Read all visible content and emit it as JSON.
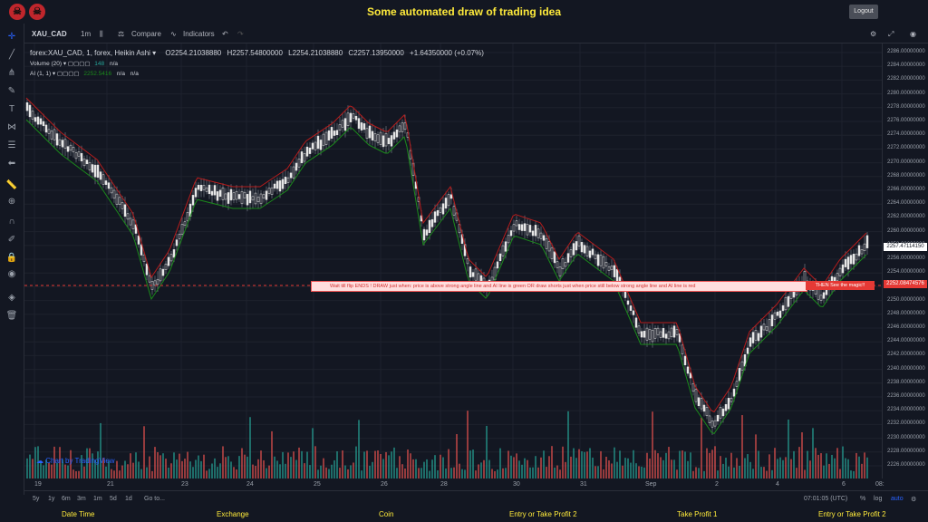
{
  "header": {
    "title": "Some automated draw of trading idea",
    "logout_label": "Logout"
  },
  "toolbar": {
    "symbol": "XAU_CAD",
    "interval": "1m",
    "compare_label": "Compare",
    "indicators_label": "Indicators"
  },
  "legend": {
    "series": "forex:XAU_CAD, 1, forex, Heikin Ashi",
    "open": "O2254.21038880",
    "high": "H2257.54800000",
    "low": "L2254.21038880",
    "close": "C2257.13950000",
    "change": "+1.64350000 (+0.07%)",
    "volume_label": "Volume (20)",
    "volume_value": "148",
    "volume_na": "n/a",
    "ai_label": "AI (1, 1)",
    "ai_value": "2252.5416",
    "ai_na1": "n/a",
    "ai_na2": "n/a"
  },
  "annotation": {
    "main_text": "Wait till flip ENDS  !    DRAW just when:  price is above strong angle line and AI line is green        OR        draw shorts just when price still below strong angle line and AI line is red",
    "then_text": "THEN See the magic!!"
  },
  "price_axis": {
    "current_price": "2257.47114150",
    "line_price": "2252.08474576",
    "labels": [
      "2286.00000000",
      "2284.00000000",
      "2282.00000000",
      "2280.00000000",
      "2278.00000000",
      "2276.00000000",
      "2274.00000000",
      "2272.00000000",
      "2270.00000000",
      "2268.00000000",
      "2266.00000000",
      "2264.00000000",
      "2262.00000000",
      "2260.00000000",
      "2258.00000000",
      "2256.00000000",
      "2254.00000000",
      "2252.00000000",
      "2250.00000000",
      "2248.00000000",
      "2246.00000000",
      "2244.00000000",
      "2242.00000000",
      "2240.00000000",
      "2238.00000000",
      "2236.00000000",
      "2234.00000000",
      "2232.00000000",
      "2230.00000000",
      "2228.00000000",
      "2226.00000000"
    ]
  },
  "time_axis": {
    "labels": [
      "19",
      "21",
      "23",
      "24",
      "25",
      "26",
      "28",
      "30",
      "31",
      "Sep",
      "2",
      "4",
      "6",
      "08:"
    ]
  },
  "bottom_bar": {
    "ranges": [
      "5y",
      "1y",
      "6m",
      "3m",
      "1m",
      "5d",
      "1d"
    ],
    "goto_label": "Go to...",
    "clock": "07:01:05 (UTC)",
    "percent_label": "%",
    "log_label": "log",
    "auto_label": "auto"
  },
  "watermark": "Chart by TradingView",
  "footer": {
    "items": [
      "Date Time",
      "Exchange",
      "Coin",
      "Entry or Take Profit 2",
      "Take Profit 1",
      "Entry or Take Profit 2"
    ]
  },
  "colors": {
    "background": "#131722",
    "title": "#ffeb3b",
    "up_volume": "#26a69a",
    "down_volume": "#ef5350",
    "ai_green": "#1b8a1b",
    "ai_red": "#b71c1c",
    "current_price_bg": "#ffffff",
    "line_price_bg": "#e53935"
  }
}
